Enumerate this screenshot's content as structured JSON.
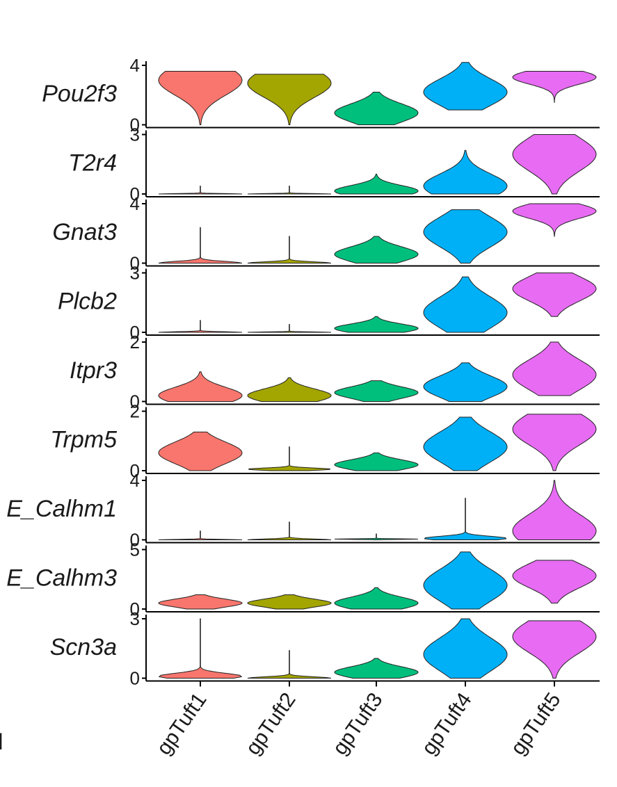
{
  "chart_data": {
    "type": "violin",
    "categories": [
      "gpTuft1",
      "gpTuft2",
      "gpTuft3",
      "gpTuft4",
      "gpTuft5"
    ],
    "colors": [
      "#F8766D",
      "#A3A500",
      "#00BF7D",
      "#00B0F6",
      "#E76BF3"
    ],
    "panel_marker": "I",
    "panels": [
      {
        "gene": "Pou2f3",
        "ymax": 4,
        "ticks": [
          "4",
          "0"
        ],
        "violins": [
          {
            "min": 0.0,
            "max": 3.6,
            "mode": 3.0,
            "profile": "upper"
          },
          {
            "min": 0.0,
            "max": 3.4,
            "mode": 2.8,
            "profile": "upper"
          },
          {
            "min": 0.0,
            "max": 2.2,
            "mode": 0.8,
            "profile": "lower"
          },
          {
            "min": 1.0,
            "max": 4.2,
            "mode": 2.2,
            "profile": "mid"
          },
          {
            "min": 1.5,
            "max": 3.6,
            "mode": 3.2,
            "profile": "top"
          }
        ]
      },
      {
        "gene": "T2r4",
        "ymax": 3,
        "ticks": [
          "3",
          "0"
        ],
        "violins": [
          {
            "min": 0.0,
            "max": 0.4,
            "mode": 0.0,
            "profile": "flat"
          },
          {
            "min": 0.0,
            "max": 0.4,
            "mode": 0.0,
            "profile": "flat"
          },
          {
            "min": 0.0,
            "max": 1.0,
            "mode": 0.15,
            "profile": "lower"
          },
          {
            "min": 0.0,
            "max": 2.2,
            "mode": 0.4,
            "profile": "lower"
          },
          {
            "min": 0.0,
            "max": 3.0,
            "mode": 2.0,
            "profile": "upper"
          }
        ]
      },
      {
        "gene": "Gnat3",
        "ymax": 4,
        "ticks": [
          "4",
          "0"
        ],
        "violins": [
          {
            "min": 0.0,
            "max": 2.4,
            "mode": 0.0,
            "profile": "flat"
          },
          {
            "min": 0.0,
            "max": 1.8,
            "mode": 0.0,
            "profile": "flat"
          },
          {
            "min": 0.0,
            "max": 1.8,
            "mode": 0.6,
            "profile": "lower"
          },
          {
            "min": 0.0,
            "max": 3.6,
            "mode": 2.1,
            "profile": "mid"
          },
          {
            "min": 1.8,
            "max": 4.0,
            "mode": 3.5,
            "profile": "top"
          }
        ]
      },
      {
        "gene": "Plcb2",
        "ymax": 3,
        "ticks": [
          "3",
          "0"
        ],
        "violins": [
          {
            "min": 0.0,
            "max": 0.6,
            "mode": 0.0,
            "profile": "flat"
          },
          {
            "min": 0.0,
            "max": 0.4,
            "mode": 0.0,
            "profile": "flat"
          },
          {
            "min": 0.0,
            "max": 0.8,
            "mode": 0.2,
            "profile": "lower"
          },
          {
            "min": 0.0,
            "max": 2.8,
            "mode": 1.0,
            "profile": "lower"
          },
          {
            "min": 0.8,
            "max": 3.0,
            "mode": 2.2,
            "profile": "mid"
          }
        ]
      },
      {
        "gene": "Itpr3",
        "ymax": 2,
        "ticks": [
          "2",
          "0"
        ],
        "violins": [
          {
            "min": 0.0,
            "max": 1.0,
            "mode": 0.2,
            "profile": "lower"
          },
          {
            "min": 0.0,
            "max": 0.8,
            "mode": 0.2,
            "profile": "lower"
          },
          {
            "min": 0.0,
            "max": 0.7,
            "mode": 0.3,
            "profile": "lower"
          },
          {
            "min": 0.0,
            "max": 1.3,
            "mode": 0.5,
            "profile": "lower"
          },
          {
            "min": 0.2,
            "max": 2.0,
            "mode": 0.9,
            "profile": "mid"
          }
        ]
      },
      {
        "gene": "Trpm5",
        "ymax": 2,
        "ticks": [
          "2",
          "0"
        ],
        "violins": [
          {
            "min": 0.0,
            "max": 1.3,
            "mode": 0.6,
            "profile": "mid"
          },
          {
            "min": 0.0,
            "max": 0.8,
            "mode": 0.05,
            "profile": "flat"
          },
          {
            "min": 0.0,
            "max": 0.6,
            "mode": 0.2,
            "profile": "lower"
          },
          {
            "min": 0.0,
            "max": 1.8,
            "mode": 0.8,
            "profile": "mid"
          },
          {
            "min": 0.0,
            "max": 1.9,
            "mode": 1.4,
            "profile": "upper"
          }
        ]
      },
      {
        "gene": "E_Calhm1",
        "ymax": 4,
        "ticks": [
          "4",
          "0"
        ],
        "violins": [
          {
            "min": 0.0,
            "max": 0.6,
            "mode": 0.0,
            "profile": "flat"
          },
          {
            "min": 0.0,
            "max": 1.2,
            "mode": 0.0,
            "profile": "flat"
          },
          {
            "min": 0.0,
            "max": 0.4,
            "mode": 0.05,
            "profile": "flat"
          },
          {
            "min": 0.0,
            "max": 2.8,
            "mode": 0.1,
            "profile": "flat"
          },
          {
            "min": 0.0,
            "max": 4.0,
            "mode": 0.6,
            "profile": "lower"
          }
        ]
      },
      {
        "gene": "E_Calhm3",
        "ymax": 5,
        "ticks": [
          "5",
          "0"
        ],
        "violins": [
          {
            "min": 0.0,
            "max": 1.2,
            "mode": 0.5,
            "profile": "lower"
          },
          {
            "min": 0.0,
            "max": 1.2,
            "mode": 0.5,
            "profile": "lower"
          },
          {
            "min": 0.0,
            "max": 1.8,
            "mode": 0.5,
            "profile": "lower"
          },
          {
            "min": 0.0,
            "max": 4.8,
            "mode": 2.0,
            "profile": "mid"
          },
          {
            "min": 0.5,
            "max": 4.1,
            "mode": 2.8,
            "profile": "mid"
          }
        ]
      },
      {
        "gene": "Scn3a",
        "ymax": 3,
        "ticks": [
          "3",
          "0"
        ],
        "violins": [
          {
            "min": 0.0,
            "max": 3.0,
            "mode": 0.1,
            "profile": "flat"
          },
          {
            "min": 0.0,
            "max": 1.4,
            "mode": 0.0,
            "profile": "flat"
          },
          {
            "min": 0.0,
            "max": 1.0,
            "mode": 0.3,
            "profile": "lower"
          },
          {
            "min": 0.0,
            "max": 3.0,
            "mode": 1.2,
            "profile": "lower"
          },
          {
            "min": 0.0,
            "max": 2.9,
            "mode": 2.1,
            "profile": "upper"
          }
        ]
      }
    ]
  }
}
